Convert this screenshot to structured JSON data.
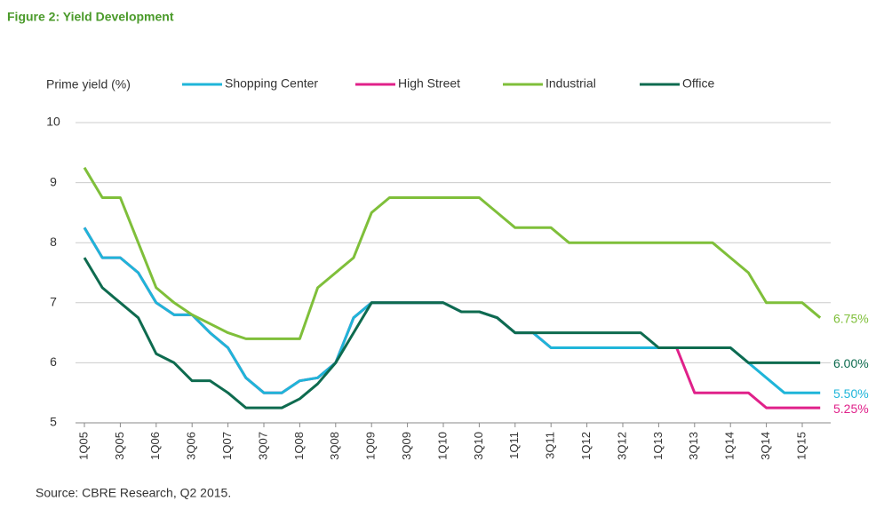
{
  "chart_data": {
    "type": "line",
    "title": "Figure 2: Yield Development",
    "y_label": "Prime yield (%)",
    "source": "Source: CBRE Research, Q2 2015.",
    "categories": [
      "1Q05",
      null,
      "3Q05",
      null,
      "1Q06",
      null,
      "3Q06",
      null,
      "1Q07",
      null,
      "3Q07",
      null,
      "1Q08",
      null,
      "3Q08",
      null,
      "1Q09",
      null,
      "3Q09",
      null,
      "1Q10",
      null,
      "3Q10",
      null,
      "1Q11",
      null,
      "3Q11",
      null,
      "1Q12",
      null,
      "3Q12",
      null,
      "1Q13",
      null,
      "3Q13",
      null,
      "1Q14",
      null,
      "3Q14",
      null,
      "1Q15",
      null
    ],
    "ylim": [
      5,
      10
    ],
    "yticks": [
      5,
      6,
      7,
      8,
      9,
      10
    ],
    "grid": true,
    "series": [
      {
        "name": "High Street",
        "color": "#e0218a",
        "values": [
          8.25,
          7.75,
          7.75,
          7.5,
          7.0,
          6.8,
          6.8,
          6.5,
          6.25,
          5.75,
          5.5,
          5.5,
          5.7,
          5.75,
          6.0,
          6.75,
          7.0,
          7.0,
          7.0,
          7.0,
          7.0,
          6.85,
          6.85,
          6.75,
          6.5,
          6.5,
          6.25,
          6.25,
          6.25,
          6.25,
          6.25,
          6.25,
          6.25,
          6.25,
          5.5,
          5.5,
          5.5,
          5.5,
          5.25,
          5.25,
          5.25,
          5.25
        ],
        "value_labels": [
          null,
          null,
          null,
          null,
          null,
          null,
          null,
          null,
          null,
          null,
          null,
          null,
          null,
          null,
          null,
          null,
          null,
          null,
          null,
          null,
          null,
          null,
          null,
          null,
          null,
          null,
          null,
          null,
          null,
          null,
          null,
          null,
          null,
          null,
          null,
          null,
          null,
          null,
          null,
          null,
          null,
          "5.25%"
        ]
      },
      {
        "name": "Shopping Center",
        "color": "#1fb5d9",
        "values": [
          8.25,
          7.75,
          7.75,
          7.5,
          7.0,
          6.8,
          6.8,
          6.5,
          6.25,
          5.75,
          5.5,
          5.5,
          5.7,
          5.75,
          6.0,
          6.75,
          7.0,
          7.0,
          7.0,
          7.0,
          7.0,
          6.85,
          6.85,
          6.75,
          6.5,
          6.5,
          6.25,
          6.25,
          6.25,
          6.25,
          6.25,
          6.25,
          6.25,
          6.25,
          6.25,
          6.25,
          6.25,
          6.0,
          5.75,
          5.5,
          5.5,
          5.5
        ],
        "value_labels": [
          null,
          null,
          null,
          null,
          null,
          null,
          null,
          null,
          null,
          null,
          null,
          null,
          null,
          null,
          null,
          null,
          null,
          null,
          null,
          null,
          null,
          null,
          null,
          null,
          null,
          null,
          null,
          null,
          null,
          null,
          null,
          null,
          null,
          null,
          null,
          null,
          null,
          null,
          null,
          null,
          null,
          "5.50%"
        ]
      },
      {
        "name": "Industrial",
        "color": "#7fbf3a",
        "values": [
          9.25,
          8.75,
          8.75,
          8.0,
          7.25,
          7.0,
          6.8,
          6.65,
          6.5,
          6.4,
          6.4,
          6.4,
          6.4,
          7.25,
          7.5,
          7.75,
          8.5,
          8.75,
          8.75,
          8.75,
          8.75,
          8.75,
          8.75,
          8.5,
          8.25,
          8.25,
          8.25,
          8.0,
          8.0,
          8.0,
          8.0,
          8.0,
          8.0,
          8.0,
          8.0,
          8.0,
          7.75,
          7.5,
          7.0,
          7.0,
          7.0,
          6.75
        ],
        "value_labels": [
          null,
          null,
          null,
          null,
          null,
          null,
          null,
          null,
          null,
          null,
          null,
          null,
          null,
          null,
          null,
          null,
          null,
          null,
          null,
          null,
          null,
          null,
          null,
          null,
          null,
          null,
          null,
          null,
          null,
          null,
          null,
          null,
          null,
          null,
          null,
          null,
          null,
          null,
          null,
          null,
          null,
          "6.75%"
        ]
      },
      {
        "name": "Office",
        "color": "#0e6b4f",
        "values": [
          7.75,
          7.25,
          7.0,
          6.75,
          6.15,
          6.0,
          5.7,
          5.7,
          5.5,
          5.25,
          5.25,
          5.25,
          5.4,
          5.65,
          6.0,
          6.5,
          7.0,
          7.0,
          7.0,
          7.0,
          7.0,
          6.85,
          6.85,
          6.75,
          6.5,
          6.5,
          6.5,
          6.5,
          6.5,
          6.5,
          6.5,
          6.5,
          6.25,
          6.25,
          6.25,
          6.25,
          6.25,
          6.0,
          6.0,
          6.0,
          6.0,
          6.0
        ],
        "value_labels": [
          null,
          null,
          null,
          null,
          null,
          null,
          null,
          null,
          null,
          null,
          null,
          null,
          null,
          null,
          null,
          null,
          null,
          null,
          null,
          null,
          null,
          null,
          null,
          null,
          null,
          null,
          null,
          null,
          null,
          null,
          null,
          null,
          null,
          null,
          null,
          null,
          null,
          null,
          null,
          null,
          null,
          "6.00%"
        ]
      }
    ]
  }
}
